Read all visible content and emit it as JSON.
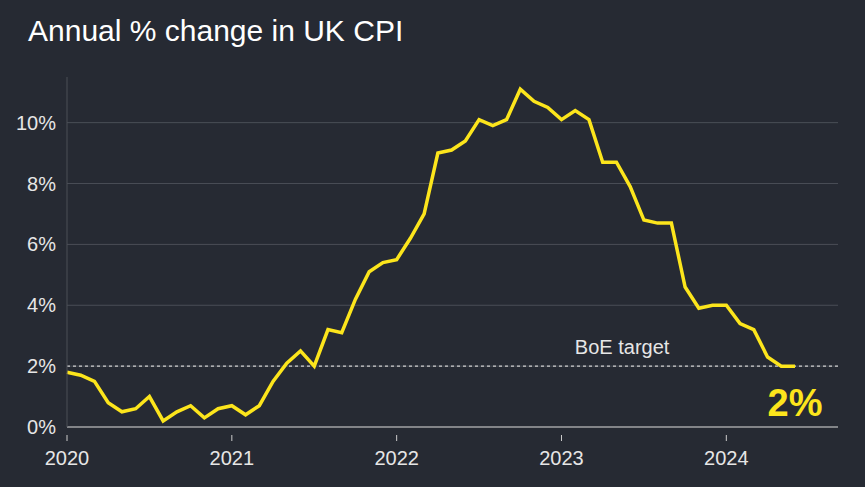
{
  "chart_data": {
    "type": "line",
    "title": "Annual % change in UK CPI",
    "categories": [
      "2020",
      null,
      null,
      null,
      null,
      null,
      null,
      null,
      null,
      null,
      null,
      null,
      "2021",
      null,
      null,
      null,
      null,
      null,
      null,
      null,
      null,
      null,
      null,
      null,
      "2022",
      null,
      null,
      null,
      null,
      null,
      null,
      null,
      null,
      null,
      null,
      null,
      "2023",
      null,
      null,
      null,
      null,
      null,
      null,
      null,
      null,
      null,
      null,
      null,
      "2024",
      null,
      null,
      null,
      null,
      null
    ],
    "values": [
      1.8,
      1.7,
      1.5,
      0.8,
      0.5,
      0.6,
      1.0,
      0.2,
      0.5,
      0.7,
      0.3,
      0.6,
      0.7,
      0.4,
      0.7,
      1.5,
      2.1,
      2.5,
      2.0,
      3.2,
      3.1,
      4.2,
      5.1,
      5.4,
      5.5,
      6.2,
      7.0,
      9.0,
      9.1,
      9.4,
      10.1,
      9.9,
      10.1,
      11.1,
      10.7,
      10.5,
      10.1,
      10.4,
      10.1,
      8.7,
      8.7,
      7.9,
      6.8,
      6.7,
      6.7,
      4.6,
      3.9,
      4.0,
      4.0,
      3.4,
      3.2,
      2.3,
      2.0,
      2.0
    ],
    "color": "#fce51c",
    "ylim": [
      0,
      11.5
    ],
    "yticks": [
      {
        "value": 0,
        "label": "0%"
      },
      {
        "value": 2,
        "label": "2%"
      },
      {
        "value": 4,
        "label": "4%"
      },
      {
        "value": 6,
        "label": "6%"
      },
      {
        "value": 8,
        "label": "8%"
      },
      {
        "value": 10,
        "label": "10%"
      }
    ],
    "grid": true,
    "reference_lines": [
      {
        "y": 2,
        "label": "BoE target",
        "line_style": "dashed"
      }
    ],
    "annotations": [
      {
        "text": "2%",
        "value": 2
      }
    ]
  }
}
